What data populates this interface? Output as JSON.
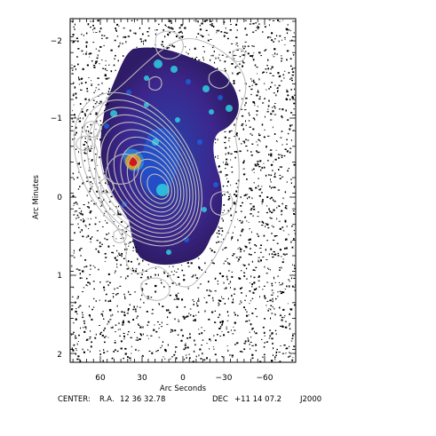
{
  "figure": {
    "xlabel": "Arc Seconds",
    "ylabel": "Arc Minutes",
    "x_ticks": [
      "60",
      "30",
      "0",
      "−30",
      "−60"
    ],
    "y_ticks": [
      "−2",
      "−1",
      "0",
      "1",
      "2"
    ],
    "center_line": {
      "label": "CENTER:",
      "ra_label": "R.A.",
      "ra_value": "12 36 32.78",
      "dec_label": "DEC",
      "dec_value": "+11 14 07.2",
      "epoch": "J2000"
    },
    "colors": {
      "frame": "#000000",
      "noise": "#000000",
      "contour": "#bdbdbd",
      "emission_low": "#3a1880",
      "emission_mid": "#1d5fd6",
      "emission_high": "#2ecfe0",
      "emission_peak": "#d01818"
    }
  }
}
